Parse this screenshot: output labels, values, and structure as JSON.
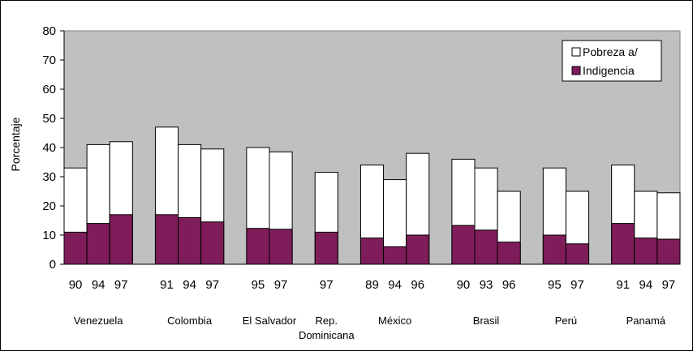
{
  "chart_data": {
    "type": "bar",
    "stacked": true,
    "ylabel": "Porcentaje",
    "xlabel": "",
    "ylim": [
      0,
      80
    ],
    "yticks": [
      0,
      10,
      20,
      30,
      40,
      50,
      60,
      70,
      80
    ],
    "grid": false,
    "legend_position": "top-right",
    "colors": {
      "plot_background": "#c0c0c0",
      "pobreza": "#ffffff",
      "indigencia": "#7f1c5a",
      "outline": "#000000"
    },
    "legend": [
      "Pobreza a/",
      "Indigencia"
    ],
    "groups": [
      {
        "country": "Venezuela",
        "years": [
          "90",
          "94",
          "97"
        ],
        "pobreza": [
          33,
          41,
          42
        ],
        "indigencia": [
          11,
          14,
          17
        ]
      },
      {
        "country": "Colombia",
        "years": [
          "91",
          "94",
          "97"
        ],
        "pobreza": [
          47,
          41,
          39.5
        ],
        "indigencia": [
          17,
          16,
          14.5
        ]
      },
      {
        "country": "El Salvador",
        "years": [
          "95",
          "97"
        ],
        "pobreza": [
          40,
          38.5
        ],
        "indigencia": [
          12.3,
          12
        ]
      },
      {
        "country": "Rep. Dominicana",
        "years": [
          "97"
        ],
        "pobreza": [
          31.5
        ],
        "indigencia": [
          11
        ]
      },
      {
        "country": "México",
        "years": [
          "89",
          "94",
          "96"
        ],
        "pobreza": [
          34,
          29,
          38
        ],
        "indigencia": [
          9,
          6,
          10
        ]
      },
      {
        "country": "Brasil",
        "years": [
          "90",
          "93",
          "96"
        ],
        "pobreza": [
          36,
          33,
          25
        ],
        "indigencia": [
          13.3,
          11.7,
          7.6
        ]
      },
      {
        "country": "Perú",
        "years": [
          "95",
          "97"
        ],
        "pobreza": [
          33,
          25
        ],
        "indigencia": [
          10,
          7
        ]
      },
      {
        "country": "Panamá",
        "years": [
          "91",
          "94",
          "97"
        ],
        "pobreza": [
          34,
          25,
          24.5
        ],
        "indigencia": [
          14,
          9,
          8.6
        ]
      }
    ]
  }
}
